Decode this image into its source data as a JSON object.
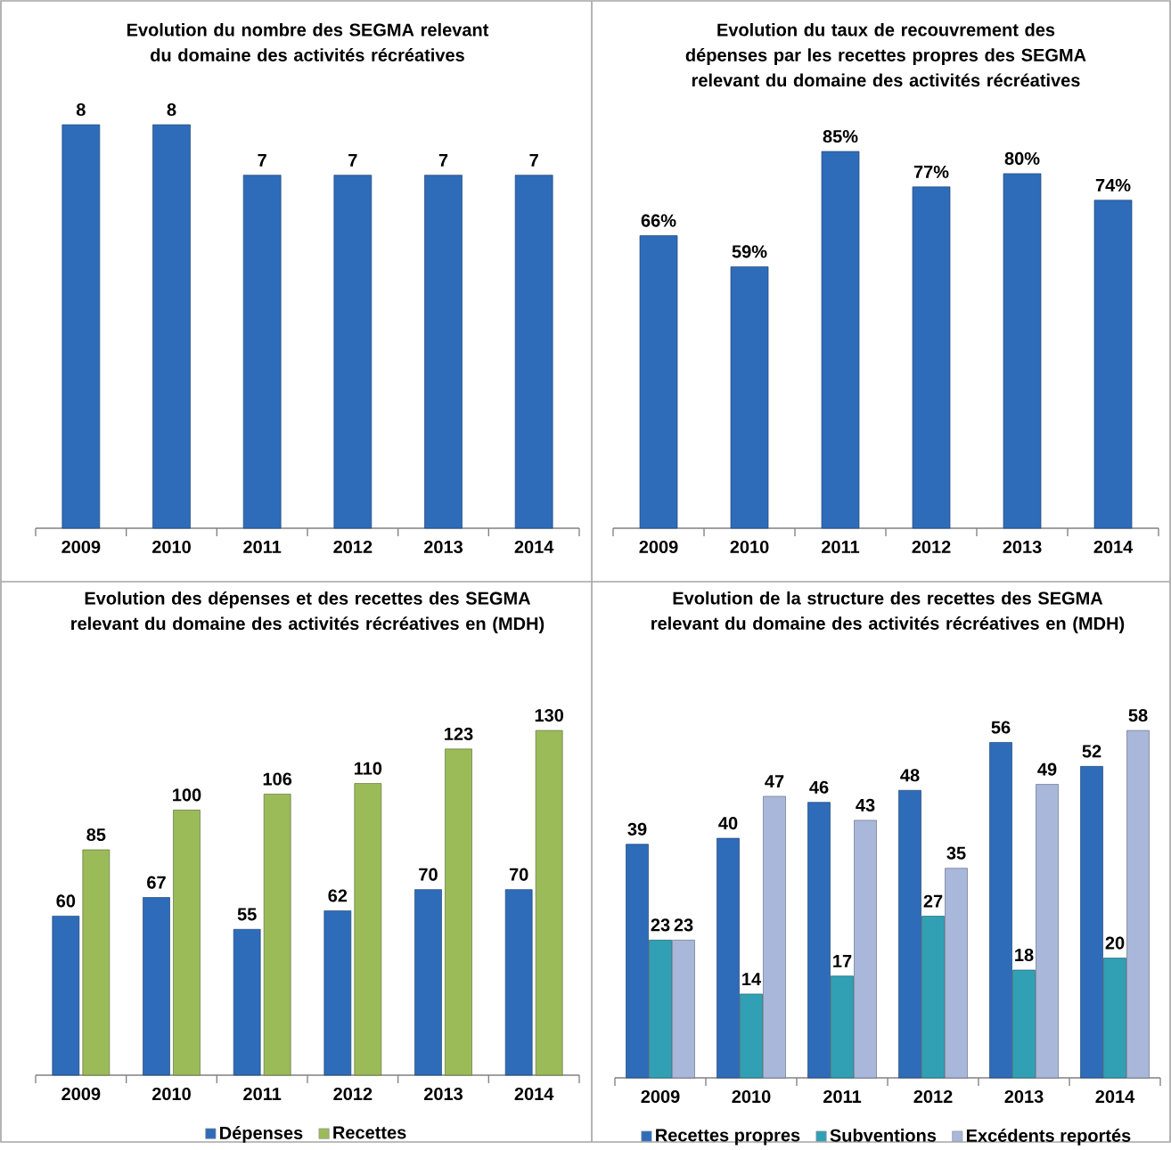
{
  "chart_data": [
    {
      "type": "bar",
      "title": "Evolution du nombre des SEGMA relevant du domaine des activités récréatives",
      "categories": [
        "2009",
        "2010",
        "2011",
        "2012",
        "2013",
        "2014"
      ],
      "values": [
        8,
        8,
        7,
        7,
        7,
        7
      ],
      "color": "#2e6cba",
      "data_labels": true
    },
    {
      "type": "bar",
      "title": "Evolution du taux de recouvrement des dépenses par les recettes propres des SEGMA relevant du domaine des activités récréatives",
      "categories": [
        "2009",
        "2010",
        "2011",
        "2012",
        "2013",
        "2014"
      ],
      "values": [
        66,
        59,
        85,
        77,
        80,
        74
      ],
      "color": "#2e6cba",
      "value_labels": [
        "66%",
        "59%",
        "85%",
        "77%",
        "80%",
        "74%"
      ]
    },
    {
      "type": "bar",
      "title": "Evolution des dépenses et des recettes des SEGMA relevant du domaine des activités récréatives en (MDH)",
      "categories": [
        "2009",
        "2010",
        "2011",
        "2012",
        "2013",
        "2014"
      ],
      "legend": "bottom",
      "data_labels": true,
      "series": [
        {
          "name": "Dépenses",
          "color": "#2e6cba",
          "values": [
            60,
            67,
            55,
            62,
            70,
            70
          ]
        },
        {
          "name": "Recettes",
          "color": "#9bbb59",
          "values": [
            85,
            100,
            106,
            110,
            123,
            130
          ]
        }
      ]
    },
    {
      "type": "bar",
      "title": "Evolution de la structure des recettes des SEGMA relevant du domaine des activités récréatives en (MDH)",
      "categories": [
        "2009",
        "2010",
        "2011",
        "2012",
        "2013",
        "2014"
      ],
      "legend": "bottom",
      "data_labels": true,
      "series": [
        {
          "name": "Recettes propres",
          "color": "#2e6cba",
          "values": [
            39,
            40,
            46,
            48,
            56,
            52
          ]
        },
        {
          "name": "Subventions",
          "color": "#31a0b5",
          "values": [
            23,
            14,
            17,
            27,
            18,
            20
          ]
        },
        {
          "name": "Excédents reportés",
          "color": "#a9b7db",
          "values": [
            23,
            47,
            43,
            35,
            49,
            58
          ]
        }
      ]
    }
  ]
}
